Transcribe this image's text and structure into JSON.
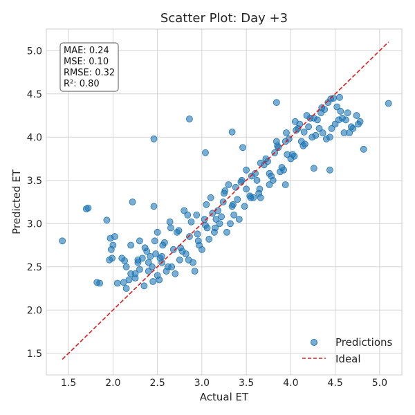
{
  "chart_data": {
    "type": "scatter",
    "title": "Scatter Plot: Day +3",
    "xlabel": "Actual ET",
    "ylabel": "Predicted ET",
    "xlim": [
      1.25,
      5.25
    ],
    "ylim": [
      1.25,
      5.25
    ],
    "x_ticks": [
      "1.5",
      "2.0",
      "2.5",
      "3.0",
      "3.5",
      "4.0",
      "4.5",
      "5.0"
    ],
    "y_ticks": [
      "1.5",
      "2.0",
      "2.5",
      "3.0",
      "3.5",
      "4.0",
      "4.5",
      "5.0"
    ],
    "grid": true,
    "stats": {
      "mae": "MAE: 0.24",
      "mse": "MSE: 0.10",
      "rmse": "RMSE: 0.32",
      "r2": "R²: 0.80"
    },
    "legend": {
      "placement": "lower-right",
      "entries": [
        "Predictions",
        "Ideal"
      ]
    },
    "ideal_line": {
      "x": [
        1.43,
        5.1
      ],
      "y": [
        1.43,
        5.1
      ]
    },
    "colors": {
      "points": "#1f77b4",
      "ideal": "#e31a1c",
      "grid": "#d4d4d4"
    },
    "series": [
      {
        "name": "Predictions",
        "x": [
          1.43,
          1.7,
          1.72,
          1.82,
          1.85,
          1.93,
          1.96,
          1.97,
          1.98,
          1.99,
          2.0,
          2.02,
          2.05,
          2.1,
          2.13,
          2.15,
          2.18,
          2.2,
          2.22,
          2.25,
          2.28,
          2.3,
          2.33,
          2.36,
          2.4,
          2.44,
          2.46,
          2.48,
          2.5,
          2.53,
          2.56,
          2.6,
          2.64,
          2.68,
          2.72,
          2.75,
          2.8,
          2.86,
          2.9,
          2.94,
          2.97,
          3.03,
          3.06,
          3.1,
          3.14,
          3.18,
          3.2,
          3.25,
          3.3,
          3.36,
          3.4,
          3.45,
          3.5,
          3.55,
          3.6,
          3.65,
          3.72,
          3.78,
          3.85,
          3.9,
          3.95,
          4.02,
          4.08,
          4.12,
          4.18,
          4.24,
          4.3,
          4.36,
          4.42,
          4.5,
          4.56,
          4.62,
          4.7,
          4.78,
          4.82,
          5.1,
          2.15,
          2.25,
          2.3,
          2.4,
          2.45,
          2.5,
          2.55,
          2.62,
          2.7,
          2.78,
          2.85,
          2.92,
          3.0,
          3.08,
          3.15,
          3.22,
          3.28,
          3.35,
          3.42,
          3.5,
          3.58,
          3.62,
          3.7,
          3.76,
          3.82,
          3.88,
          3.94,
          4.0,
          4.06,
          4.14,
          4.2,
          4.28,
          4.34,
          4.4,
          4.46,
          4.52,
          4.58,
          4.66,
          4.74,
          2.35,
          2.42,
          2.52,
          2.58,
          2.66,
          2.74,
          2.82,
          2.88,
          2.96,
          3.04,
          3.12,
          3.24,
          3.32,
          3.38,
          3.48,
          3.56,
          3.64,
          3.74,
          3.8,
          3.86,
          3.92,
          3.98,
          4.04,
          4.1,
          4.16,
          4.22,
          4.32,
          4.38,
          4.44,
          4.48,
          4.54,
          4.6,
          4.64,
          4.68,
          4.76,
          2.12,
          2.2,
          2.28,
          2.38,
          2.47,
          2.55,
          2.65,
          2.76,
          2.84,
          2.95,
          3.05,
          3.16,
          3.26,
          3.34,
          3.44,
          3.54,
          3.66,
          3.76,
          3.84,
          3.96,
          4.05,
          4.15,
          4.26,
          4.35,
          4.45,
          4.55,
          2.46,
          2.86,
          3.04,
          3.34,
          3.84,
          4.26,
          4.44,
          3.46,
          3.66,
          3.94
        ],
        "y": [
          2.8,
          3.17,
          3.18,
          2.32,
          2.31,
          3.04,
          2.58,
          2.83,
          2.7,
          2.6,
          2.75,
          2.85,
          2.31,
          2.6,
          2.57,
          2.5,
          2.35,
          2.75,
          3.25,
          2.42,
          2.55,
          2.8,
          2.6,
          2.72,
          2.45,
          2.5,
          3.2,
          2.65,
          2.9,
          2.6,
          2.75,
          2.45,
          3.02,
          2.7,
          2.9,
          2.58,
          3.15,
          2.85,
          2.55,
          3.1,
          2.75,
          3.05,
          2.95,
          3.3,
          2.9,
          3.15,
          3.0,
          3.35,
          3.45,
          3.1,
          3.28,
          3.5,
          3.62,
          3.3,
          3.58,
          3.4,
          3.75,
          3.55,
          3.9,
          3.65,
          4.05,
          3.8,
          4.1,
          3.95,
          4.25,
          4.0,
          4.2,
          4.05,
          4.4,
          4.15,
          4.3,
          4.2,
          4.1,
          4.18,
          3.86,
          4.39,
          2.25,
          2.37,
          2.47,
          2.55,
          2.33,
          2.4,
          2.62,
          2.5,
          2.42,
          2.68,
          2.58,
          2.45,
          2.7,
          2.82,
          2.95,
          3.08,
          2.9,
          3.22,
          3.05,
          3.4,
          3.3,
          3.5,
          3.68,
          3.45,
          3.82,
          3.6,
          3.95,
          3.75,
          4.08,
          3.9,
          4.12,
          4.02,
          4.28,
          3.98,
          4.1,
          4.35,
          4.22,
          4.05,
          4.25,
          2.28,
          2.62,
          2.35,
          2.78,
          2.5,
          2.92,
          2.65,
          3.02,
          2.8,
          2.98,
          3.12,
          3.25,
          3.0,
          3.42,
          3.2,
          3.55,
          3.35,
          3.72,
          3.5,
          3.88,
          3.62,
          3.98,
          3.78,
          4.15,
          3.92,
          4.22,
          4.1,
          4.32,
          4.0,
          4.45,
          4.2,
          4.05,
          4.28,
          4.12,
          4.15,
          2.32,
          2.42,
          2.58,
          2.68,
          2.8,
          2.55,
          2.95,
          2.72,
          3.1,
          2.88,
          3.22,
          3.05,
          3.38,
          3.2,
          3.48,
          3.32,
          3.7,
          3.58,
          3.95,
          3.8,
          4.18,
          4.06,
          4.22,
          4.34,
          4.44,
          4.46,
          3.98,
          4.21,
          3.82,
          4.06,
          4.4,
          3.64,
          3.62,
          3.88,
          3.3,
          3.45
        ]
      }
    ]
  }
}
